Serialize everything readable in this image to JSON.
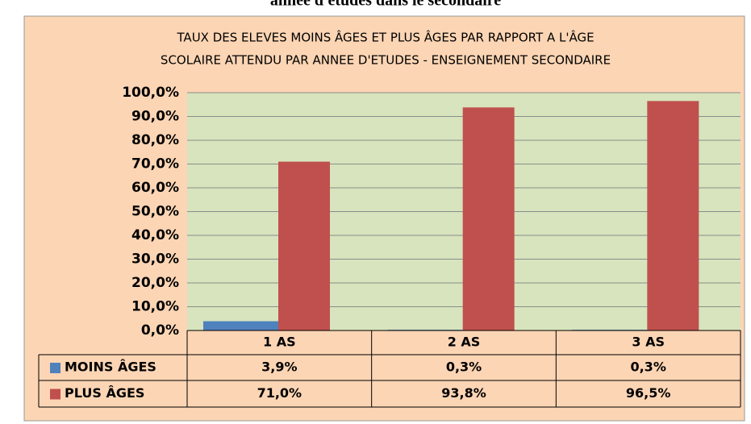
{
  "caption": "année d'études dans le secondaire",
  "chart_data": {
    "type": "bar",
    "title": [
      "TAUX DES ELEVES MOINS ÂGES ET PLUS ÂGES PAR RAPPORT A L'ÂGE",
      "SCOLAIRE ATTENDU PAR ANNEE D'ETUDES -  ENSEIGNEMENT SECONDAIRE"
    ],
    "categories": [
      "1 AS",
      "2 AS",
      "3 AS"
    ],
    "series": [
      {
        "name": "MOINS ÂGES",
        "color": "#4f81bd",
        "values": [
          3.9,
          0.3,
          0.3
        ],
        "value_labels": [
          "3,9%",
          "0,3%",
          "0,3%"
        ]
      },
      {
        "name": "PLUS ÂGES",
        "color": "#c0504d",
        "values": [
          71.0,
          93.8,
          96.5
        ],
        "value_labels": [
          "71,0%",
          "93,8%",
          "96,5%"
        ]
      }
    ],
    "ylim": [
      0,
      100
    ],
    "yticks": [
      {
        "value": 0,
        "label": "0,0%"
      },
      {
        "value": 10,
        "label": "10,0%"
      },
      {
        "value": 20,
        "label": "20,0%"
      },
      {
        "value": 30,
        "label": "30,0%"
      },
      {
        "value": 40,
        "label": "40,0%"
      },
      {
        "value": 50,
        "label": "50,0%"
      },
      {
        "value": 60,
        "label": "60,0%"
      },
      {
        "value": 70,
        "label": "70,0%"
      },
      {
        "value": 80,
        "label": "80,0%"
      },
      {
        "value": 90,
        "label": "90,0%"
      },
      {
        "value": 100,
        "label": "100,0%"
      }
    ],
    "grid": true
  }
}
